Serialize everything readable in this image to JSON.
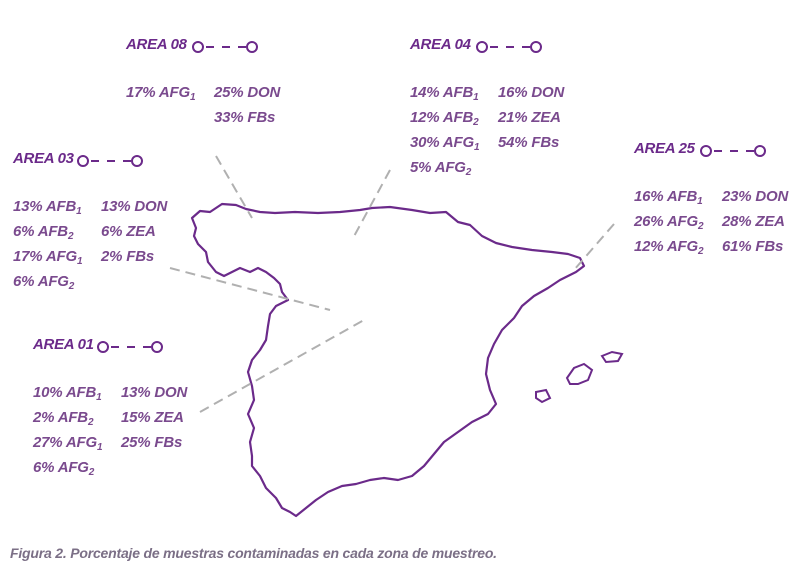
{
  "colors": {
    "title": "#6b2a8a",
    "text": "#7a4a8e",
    "map_outline": "#6b2a8a",
    "leader": "#b0b0b0",
    "caption": "#7b6f86"
  },
  "areas": [
    {
      "title": "AREA 08",
      "col1": [
        {
          "pct": "17%",
          "code": "AFG",
          "sub": "1"
        }
      ],
      "col2": [
        {
          "pct": "25%",
          "code": "DON",
          "sub": ""
        },
        {
          "pct": "33%",
          "code": "FBs",
          "sub": ""
        }
      ]
    },
    {
      "title": "AREA 04",
      "col1": [
        {
          "pct": "14%",
          "code": "AFB",
          "sub": "1"
        },
        {
          "pct": "12%",
          "code": "AFB",
          "sub": "2"
        },
        {
          "pct": "30%",
          "code": "AFG",
          "sub": "1"
        },
        {
          "pct": "5%",
          "code": "AFG",
          "sub": "2"
        }
      ],
      "col2": [
        {
          "pct": "16%",
          "code": "DON",
          "sub": ""
        },
        {
          "pct": "21%",
          "code": "ZEA",
          "sub": ""
        },
        {
          "pct": "54%",
          "code": "FBs",
          "sub": ""
        }
      ]
    },
    {
      "title": "AREA 03",
      "col1": [
        {
          "pct": "13%",
          "code": "AFB",
          "sub": "1"
        },
        {
          "pct": "6%",
          "code": "AFB",
          "sub": "2"
        },
        {
          "pct": "17%",
          "code": "AFG",
          "sub": "1"
        },
        {
          "pct": "6%",
          "code": "AFG",
          "sub": "2"
        }
      ],
      "col2": [
        {
          "pct": "13%",
          "code": "DON",
          "sub": ""
        },
        {
          "pct": "6%",
          "code": "ZEA",
          "sub": ""
        },
        {
          "pct": "2%",
          "code": "FBs",
          "sub": ""
        }
      ]
    },
    {
      "title": "AREA 25",
      "col1": [
        {
          "pct": "16%",
          "code": "AFB",
          "sub": "1"
        },
        {
          "pct": "26%",
          "code": "AFG",
          "sub": "2"
        },
        {
          "pct": "12%",
          "code": "AFG",
          "sub": "2"
        }
      ],
      "col2": [
        {
          "pct": "23%",
          "code": "DON",
          "sub": ""
        },
        {
          "pct": "28%",
          "code": "ZEA",
          "sub": ""
        },
        {
          "pct": "61%",
          "code": "FBs",
          "sub": ""
        }
      ]
    },
    {
      "title": "AREA 01",
      "col1": [
        {
          "pct": "10%",
          "code": "AFB",
          "sub": "1"
        },
        {
          "pct": "2%",
          "code": "AFB",
          "sub": "2"
        },
        {
          "pct": "27%",
          "code": "AFG",
          "sub": "1"
        },
        {
          "pct": "6%",
          "code": "AFG",
          "sub": "2"
        }
      ],
      "col2": [
        {
          "pct": "13%",
          "code": "DON",
          "sub": ""
        },
        {
          "pct": "15%",
          "code": "ZEA",
          "sub": ""
        },
        {
          "pct": "25%",
          "code": "FBs",
          "sub": ""
        }
      ]
    }
  ],
  "caption": "Figura 2. Porcentaje de muestras contaminadas en cada zona de muestreo."
}
